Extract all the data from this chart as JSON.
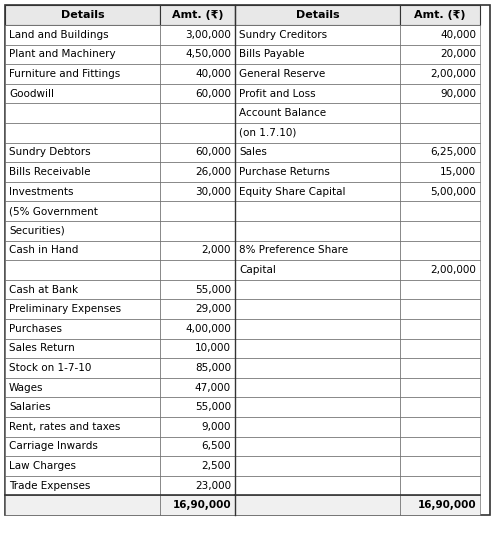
{
  "left_rows": [
    {
      "detail": "Land and Buildings",
      "amt": "3,00,000",
      "indent": 0
    },
    {
      "detail": "Plant and Machinery",
      "amt": "4,50,000",
      "indent": 0
    },
    {
      "detail": "Furniture and Fittings",
      "amt": "40,000",
      "indent": 0
    },
    {
      "detail": "Goodwill",
      "amt": "60,000",
      "indent": 0
    },
    {
      "detail": "",
      "amt": "",
      "indent": 0
    },
    {
      "detail": "",
      "amt": "",
      "indent": 0
    },
    {
      "detail": "Sundry Debtors",
      "amt": "60,000",
      "indent": 0
    },
    {
      "detail": "Bills Receivable",
      "amt": "26,000",
      "indent": 0
    },
    {
      "detail": "Investments",
      "amt": "30,000",
      "indent": 0
    },
    {
      "detail": "(5% Government",
      "amt": "",
      "indent": 0
    },
    {
      "detail": "Securities)",
      "amt": "",
      "indent": 0
    },
    {
      "detail": "Cash in Hand",
      "amt": "2,000",
      "indent": 0
    },
    {
      "detail": "",
      "amt": "",
      "indent": 0
    },
    {
      "detail": "Cash at Bank",
      "amt": "55,000",
      "indent": 0
    },
    {
      "detail": "Preliminary Expenses",
      "amt": "29,000",
      "indent": 0
    },
    {
      "detail": "Purchases",
      "amt": "4,00,000",
      "indent": 0
    },
    {
      "detail": "Sales Return",
      "amt": "10,000",
      "indent": 0
    },
    {
      "detail": "Stock on 1-7-10",
      "amt": "85,000",
      "indent": 0
    },
    {
      "detail": "Wages",
      "amt": "47,000",
      "indent": 0
    },
    {
      "detail": "Salaries",
      "amt": "55,000",
      "indent": 0
    },
    {
      "detail": "Rent, rates and taxes",
      "amt": "9,000",
      "indent": 0
    },
    {
      "detail": "Carriage Inwards",
      "amt": "6,500",
      "indent": 0
    },
    {
      "detail": "Law Charges",
      "amt": "2,500",
      "indent": 0
    },
    {
      "detail": "Trade Expenses",
      "amt": "23,000",
      "indent": 0
    },
    {
      "detail": "",
      "amt": "16,90,000",
      "indent": 0,
      "total": true
    }
  ],
  "right_rows": [
    {
      "detail": "Sundry Creditors",
      "amt": "40,000",
      "indent": 0
    },
    {
      "detail": "Bills Payable",
      "amt": "20,000",
      "indent": 0
    },
    {
      "detail": "General Reserve",
      "amt": "2,00,000",
      "indent": 0
    },
    {
      "detail": "Profit and Loss",
      "amt": "90,000",
      "indent": 0
    },
    {
      "detail": "Account Balance",
      "amt": "",
      "indent": 0
    },
    {
      "detail": "(on 1.7.10)",
      "amt": "",
      "indent": 0
    },
    {
      "detail": "Sales",
      "amt": "6,25,000",
      "indent": 0
    },
    {
      "detail": "Purchase Returns",
      "amt": "15,000",
      "indent": 0
    },
    {
      "detail": "Equity Share Capital",
      "amt": "5,00,000",
      "indent": 0
    },
    {
      "detail": "",
      "amt": "",
      "indent": 0
    },
    {
      "detail": "",
      "amt": "",
      "indent": 0
    },
    {
      "detail": "8% Preference Share",
      "amt": "",
      "indent": 0
    },
    {
      "detail": "Capital",
      "amt": "2,00,000",
      "indent": 0
    },
    {
      "detail": "",
      "amt": "",
      "indent": 0
    },
    {
      "detail": "",
      "amt": "",
      "indent": 0
    },
    {
      "detail": "",
      "amt": "",
      "indent": 0
    },
    {
      "detail": "",
      "amt": "",
      "indent": 0
    },
    {
      "detail": "",
      "amt": "",
      "indent": 0
    },
    {
      "detail": "",
      "amt": "",
      "indent": 0
    },
    {
      "detail": "",
      "amt": "",
      "indent": 0
    },
    {
      "detail": "",
      "amt": "",
      "indent": 0
    },
    {
      "detail": "",
      "amt": "",
      "indent": 0
    },
    {
      "detail": "",
      "amt": "",
      "indent": 0
    },
    {
      "detail": "",
      "amt": "",
      "indent": 0
    },
    {
      "detail": "",
      "amt": "16,90,000",
      "indent": 0,
      "total": true
    }
  ],
  "header_left_detail": "Details",
  "header_left_amt": "Amt. (₹)",
  "header_right_detail": "Details",
  "header_right_amt": "Amt. (₹)",
  "bg_color": "#ffffff",
  "header_bg": "#e8e8e8",
  "border_color": "#333333",
  "text_color": "#000000",
  "font_size": 7.5,
  "header_font_size": 8.0
}
